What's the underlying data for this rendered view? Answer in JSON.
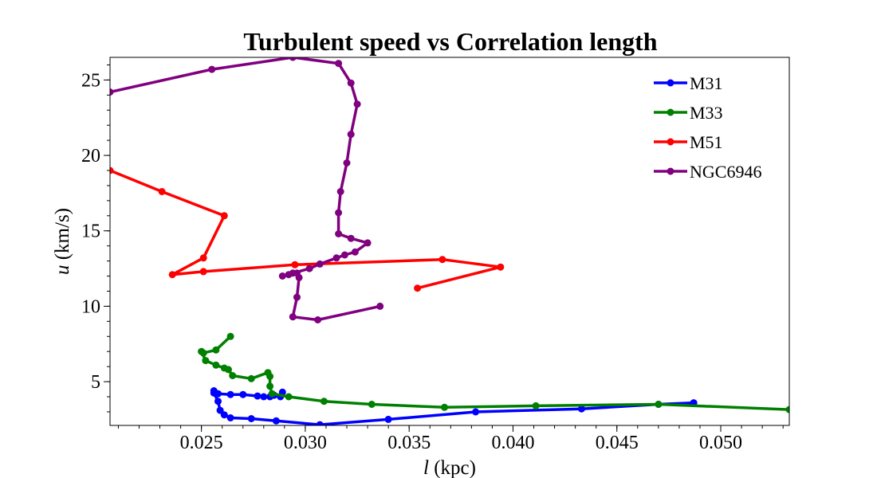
{
  "chart_data": {
    "type": "line",
    "title": "Turbulent speed vs Correlation length",
    "xlabel_var": "l",
    "xlabel_unit": " (kpc)",
    "ylabel_var": "u",
    "ylabel_unit": " (km/s)",
    "xlim": [
      0.0206,
      0.0533
    ],
    "ylim": [
      2.1,
      26.5
    ],
    "x_ticks": [
      0.025,
      0.03,
      0.035,
      0.04,
      0.045,
      0.05
    ],
    "x_tick_labels": [
      "0.025",
      "0.030",
      "0.035",
      "0.040",
      "0.045",
      "0.050"
    ],
    "x_minor_step": 0.001,
    "y_ticks": [
      5,
      10,
      15,
      20,
      25
    ],
    "y_tick_labels": [
      "5",
      "10",
      "15",
      "20",
      "25"
    ],
    "y_minor_step": 1,
    "grid": false,
    "legend_position": "top-right",
    "series": [
      {
        "name": "M31",
        "color": "#0000ff",
        "points": [
          [
            0.0289,
            4.3
          ],
          [
            0.0288,
            4.0
          ],
          [
            0.0285,
            4.1
          ],
          [
            0.0283,
            4.0
          ],
          [
            0.028,
            4.0
          ],
          [
            0.0277,
            4.05
          ],
          [
            0.027,
            4.15
          ],
          [
            0.0264,
            4.15
          ],
          [
            0.0258,
            4.2
          ],
          [
            0.0256,
            4.4
          ],
          [
            0.0256,
            4.25
          ],
          [
            0.0258,
            3.7
          ],
          [
            0.0259,
            3.1
          ],
          [
            0.0261,
            2.8
          ],
          [
            0.0264,
            2.6
          ],
          [
            0.0274,
            2.55
          ],
          [
            0.0286,
            2.4
          ],
          [
            0.0307,
            2.15
          ],
          [
            0.034,
            2.5
          ],
          [
            0.0382,
            3.0
          ],
          [
            0.0433,
            3.2
          ],
          [
            0.047,
            3.5
          ],
          [
            0.0487,
            3.6
          ]
        ]
      },
      {
        "name": "M33",
        "color": "#008000",
        "points": [
          [
            0.0264,
            8.0
          ],
          [
            0.0257,
            7.1
          ],
          [
            0.0251,
            6.9
          ],
          [
            0.025,
            7.0
          ],
          [
            0.0252,
            6.4
          ],
          [
            0.0257,
            6.1
          ],
          [
            0.0261,
            5.9
          ],
          [
            0.0263,
            5.8
          ],
          [
            0.0265,
            5.4
          ],
          [
            0.0274,
            5.2
          ],
          [
            0.0282,
            5.6
          ],
          [
            0.0283,
            5.35
          ],
          [
            0.0283,
            4.7
          ],
          [
            0.0284,
            4.2
          ],
          [
            0.0292,
            4.0
          ],
          [
            0.0309,
            3.7
          ],
          [
            0.0332,
            3.5
          ],
          [
            0.0367,
            3.3
          ],
          [
            0.0411,
            3.4
          ],
          [
            0.047,
            3.5
          ],
          [
            0.0533,
            3.15
          ]
        ]
      },
      {
        "name": "M51",
        "color": "#ff0000",
        "points": [
          [
            0.0354,
            11.2
          ],
          [
            0.0394,
            12.6
          ],
          [
            0.0366,
            13.1
          ],
          [
            0.0295,
            12.75
          ],
          [
            0.0251,
            12.3
          ],
          [
            0.0236,
            12.1
          ],
          [
            0.0251,
            13.2
          ],
          [
            0.0261,
            16.0
          ],
          [
            0.0231,
            17.6
          ],
          [
            0.0206,
            19.0
          ]
        ]
      },
      {
        "name": "NGC6946",
        "color": "#800080",
        "points": [
          [
            0.0336,
            10.0
          ],
          [
            0.0306,
            9.1
          ],
          [
            0.0294,
            9.3
          ],
          [
            0.0296,
            10.6
          ],
          [
            0.0297,
            11.9
          ],
          [
            0.0296,
            12.2
          ],
          [
            0.0294,
            12.2
          ],
          [
            0.0292,
            12.1
          ],
          [
            0.0289,
            12.0
          ],
          [
            0.0302,
            12.5
          ],
          [
            0.0307,
            12.8
          ],
          [
            0.0315,
            13.2
          ],
          [
            0.0319,
            13.4
          ],
          [
            0.0324,
            13.6
          ],
          [
            0.033,
            14.2
          ],
          [
            0.0322,
            14.5
          ],
          [
            0.0316,
            14.8
          ],
          [
            0.0316,
            16.2
          ],
          [
            0.0317,
            17.6
          ],
          [
            0.032,
            19.5
          ],
          [
            0.0322,
            21.4
          ],
          [
            0.0325,
            23.4
          ],
          [
            0.0322,
            24.8
          ],
          [
            0.0316,
            26.1
          ],
          [
            0.0294,
            26.5
          ],
          [
            0.0255,
            25.7
          ],
          [
            0.0206,
            24.2
          ]
        ]
      }
    ]
  }
}
